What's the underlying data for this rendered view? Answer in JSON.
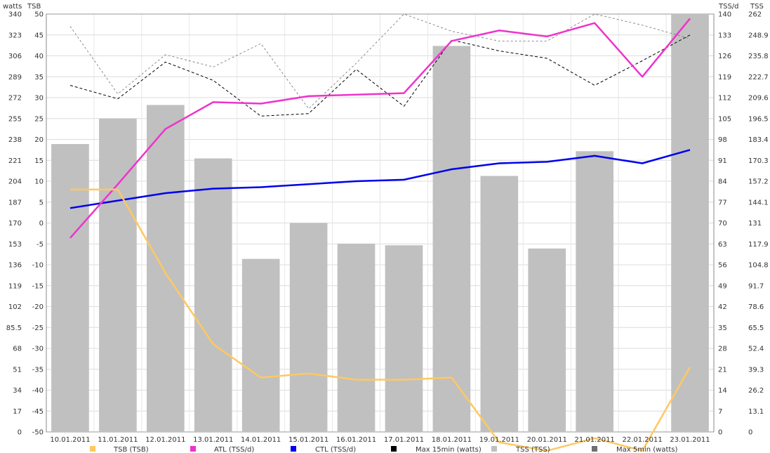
{
  "chart_data": {
    "type": "bar+line",
    "categories": [
      "10.01.2011",
      "11.01.2011",
      "12.01.2011",
      "13.01.2011",
      "14.01.2011",
      "15.01.2011",
      "16.01.2011",
      "17.01.2011",
      "18.01.2011",
      "19.01.2011",
      "20.01.2011",
      "21.01.2011",
      "22.01.2011",
      "23.01.2011"
    ],
    "axes": {
      "watts": {
        "title": "watts",
        "min": 0,
        "max": 340,
        "ticks": [
          "0",
          "17",
          "34",
          "51",
          "68",
          "85.5",
          "102",
          "119",
          "136",
          "153",
          "170",
          "187",
          "204",
          "221",
          "238",
          "255",
          "272",
          "289",
          "306",
          "323",
          "340"
        ]
      },
      "tsb": {
        "title": "TSB",
        "min": -50,
        "max": 50,
        "ticks": [
          "-50",
          "-45",
          "-40",
          "-35",
          "-30",
          "-25",
          "-20",
          "-15",
          "-10",
          "-5",
          "0",
          "5",
          "10",
          "15",
          "20",
          "25",
          "30",
          "35",
          "40",
          "45",
          "50"
        ]
      },
      "tssd": {
        "title": "TSS/d",
        "min": 0,
        "max": 140,
        "ticks": [
          "0",
          "7",
          "14",
          "21",
          "28",
          "35",
          "42",
          "49",
          "56",
          "63",
          "70",
          "77",
          "84",
          "91",
          "98",
          "105",
          "112",
          "119",
          "126",
          "133",
          "140"
        ]
      },
      "tss": {
        "title": "TSS",
        "min": 0,
        "max": 262,
        "ticks": [
          "0",
          "13.1",
          "26.2",
          "39.3",
          "52.4",
          "65.5",
          "78.6",
          "91.7",
          "104.8",
          "117.9",
          "131",
          "144.1",
          "157.2",
          "170.3",
          "183.4",
          "196.5",
          "209.6",
          "222.7",
          "235.8",
          "248.9",
          "262"
        ]
      }
    },
    "grid": true,
    "legend_position": "bottom",
    "series": [
      {
        "name": "TSB (TSB)",
        "type": "line",
        "axis": "tsb",
        "color": "#ffc861",
        "width": 2.5,
        "values": [
          8,
          8,
          -12,
          -29,
          -37,
          -36,
          -37.5,
          -37.5,
          -37,
          -52.5,
          -54.5,
          -51.5,
          -54.5,
          -34.5
        ]
      },
      {
        "name": "ATL (TSS/d)",
        "type": "line",
        "axis": "tssd",
        "color": "#ee33cc",
        "width": 2.5,
        "values": [
          65,
          83,
          101.5,
          110.5,
          110,
          112.5,
          113,
          113.5,
          131,
          134.5,
          132.5,
          137,
          119,
          138.5
        ]
      },
      {
        "name": "CTL (TSS/d)",
        "type": "line",
        "axis": "tssd",
        "color": "#0000ee",
        "width": 2.5,
        "values": [
          75,
          77.5,
          80,
          81.5,
          82,
          83,
          84,
          84.5,
          88,
          90,
          90.5,
          92.5,
          90,
          94.5
        ]
      },
      {
        "name": "Max 15min (watts)",
        "type": "line",
        "axis": "watts",
        "color": "#000000",
        "width": 1,
        "dash": "4,3",
        "values": [
          282,
          271,
          301,
          286,
          257,
          259,
          295,
          265,
          319,
          310,
          304,
          282,
          302,
          323
        ]
      },
      {
        "name": "TSS (TSS)",
        "type": "bar",
        "axis": "tss",
        "color": "#c0c0c0",
        "values": [
          180.5,
          196.5,
          205,
          171.5,
          108.5,
          131,
          118,
          117,
          242,
          160.5,
          115,
          176,
          null,
          262
        ]
      },
      {
        "name": "Max 5min (watts)",
        "type": "line",
        "axis": "watts",
        "color": "#707070",
        "width": 0.8,
        "dash": "3,3",
        "values": [
          330,
          275,
          307,
          297,
          316,
          263,
          300,
          340,
          326,
          318,
          318,
          340,
          331,
          320
        ]
      }
    ]
  }
}
